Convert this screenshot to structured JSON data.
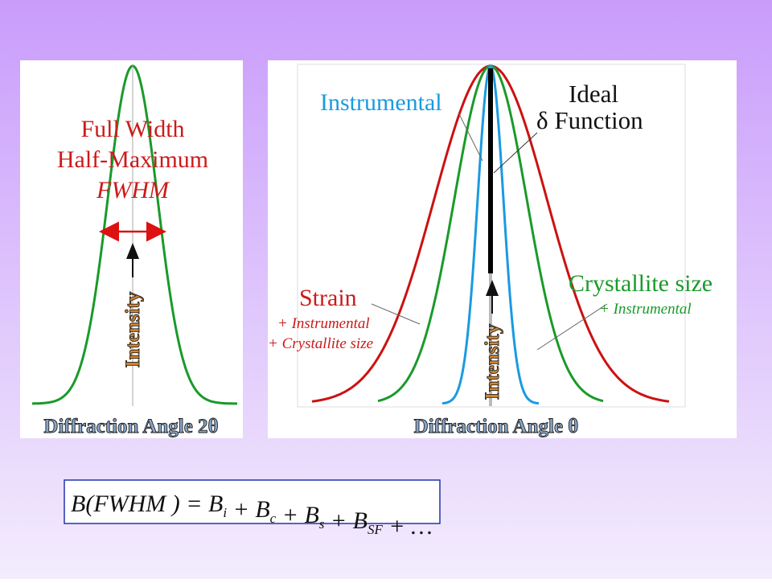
{
  "left_panel": {
    "label_lines": [
      "Full Width",
      "Half-Maximum"
    ],
    "label_abbrev": "FWHM",
    "y_axis": "Intensity",
    "x_axis": "Diffraction Angle 2θ"
  },
  "right_panel": {
    "instrumental": "Instrumental",
    "ideal_lines": [
      "Ideal",
      "δ Function"
    ],
    "strain": {
      "title": "Strain",
      "notes": [
        "+ Instrumental",
        "+ Crystallite size"
      ]
    },
    "crystallite": {
      "title": "Crystallite size",
      "notes": [
        "+ Instrumental"
      ]
    },
    "y_axis": "Intensity",
    "x_axis": "Diffraction Angle θ"
  },
  "formula": [
    {
      "t": "B(FWHM )"
    },
    {
      "t": " = "
    },
    {
      "t": "B",
      "sub": "i"
    },
    {
      "t": " + "
    },
    {
      "t": "B",
      "sub": "c"
    },
    {
      "t": " + "
    },
    {
      "t": "B",
      "sub": "s"
    },
    {
      "t": " + "
    },
    {
      "t": "B",
      "sub": "SF"
    },
    {
      "t": " + …"
    }
  ]
}
